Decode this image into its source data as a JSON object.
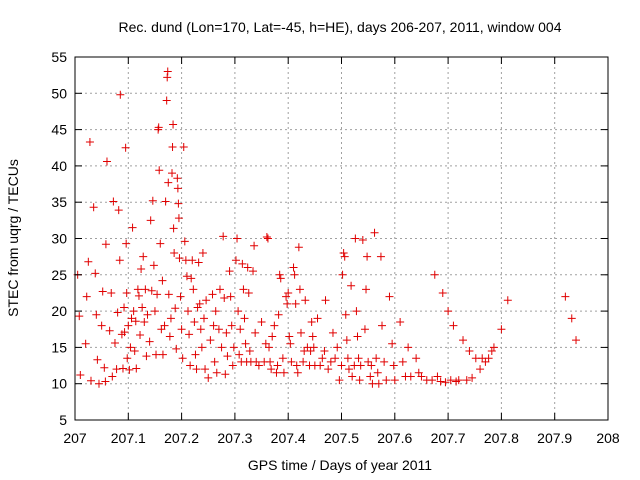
{
  "chart_data": {
    "type": "scatter",
    "title": "Rec. dund (Lon=170, Lat=-45, h=HE), days 206-207, 2011, window 004",
    "xlabel": "GPS time / Days of year 2011",
    "ylabel": "STEC from uqrg / TECUs",
    "xlim": [
      207,
      208
    ],
    "ylim": [
      5,
      55
    ],
    "x_ticks": [
      207,
      207.1,
      207.2,
      207.3,
      207.4,
      207.5,
      207.6,
      207.7,
      207.8,
      207.9,
      208
    ],
    "x_tick_labels": [
      "207",
      "207.1",
      "207.2",
      "207.3",
      "207.4",
      "207.5",
      "207.6",
      "207.7",
      "207.8",
      "207.9",
      "208"
    ],
    "y_ticks": [
      5,
      10,
      15,
      20,
      25,
      30,
      35,
      40,
      45,
      50,
      55
    ],
    "y_tick_labels": [
      "5",
      "10",
      "15",
      "20",
      "25",
      "30",
      "35",
      "40",
      "45",
      "50",
      "55"
    ],
    "grid": true,
    "marker": "+",
    "marker_color": "#e00000",
    "points": [
      [
        207.005,
        25.0
      ],
      [
        207.008,
        19.3
      ],
      [
        207.01,
        11.2
      ],
      [
        207.02,
        15.5
      ],
      [
        207.022,
        22.0
      ],
      [
        207.025,
        26.8
      ],
      [
        207.028,
        43.3
      ],
      [
        207.03,
        10.4
      ],
      [
        207.035,
        34.3
      ],
      [
        207.038,
        25.2
      ],
      [
        207.04,
        19.5
      ],
      [
        207.042,
        13.3
      ],
      [
        207.045,
        10.0
      ],
      [
        207.05,
        18.0
      ],
      [
        207.052,
        22.7
      ],
      [
        207.055,
        12.2
      ],
      [
        207.057,
        10.3
      ],
      [
        207.058,
        29.2
      ],
      [
        207.06,
        40.6
      ],
      [
        207.065,
        17.3
      ],
      [
        207.068,
        22.5
      ],
      [
        207.07,
        11.0
      ],
      [
        207.072,
        35.1
      ],
      [
        207.075,
        15.6
      ],
      [
        207.078,
        12.0
      ],
      [
        207.08,
        19.8
      ],
      [
        207.082,
        33.9
      ],
      [
        207.084,
        27.0
      ],
      [
        207.085,
        49.8
      ],
      [
        207.088,
        16.8
      ],
      [
        207.09,
        12.1
      ],
      [
        207.092,
        20.5
      ],
      [
        207.093,
        17.1
      ],
      [
        207.095,
        42.5
      ],
      [
        207.096,
        29.3
      ],
      [
        207.097,
        22.5
      ],
      [
        207.098,
        13.5
      ],
      [
        207.1,
        18.0
      ],
      [
        207.102,
        11.9
      ],
      [
        207.104,
        15.0
      ],
      [
        207.106,
        19.0
      ],
      [
        207.108,
        31.5
      ],
      [
        207.11,
        20.0
      ],
      [
        207.112,
        14.5
      ],
      [
        207.114,
        18.6
      ],
      [
        207.115,
        12.1
      ],
      [
        207.118,
        23.0
      ],
      [
        207.12,
        22.1
      ],
      [
        207.122,
        16.7
      ],
      [
        207.124,
        25.8
      ],
      [
        207.126,
        20.5
      ],
      [
        207.128,
        27.5
      ],
      [
        207.13,
        18.5
      ],
      [
        207.132,
        23.0
      ],
      [
        207.134,
        13.8
      ],
      [
        207.136,
        19.5
      ],
      [
        207.14,
        15.8
      ],
      [
        207.142,
        32.5
      ],
      [
        207.144,
        22.8
      ],
      [
        207.146,
        35.2
      ],
      [
        207.148,
        26.3
      ],
      [
        207.15,
        20.0
      ],
      [
        207.152,
        14.0
      ],
      [
        207.154,
        22.3
      ],
      [
        207.156,
        45.0
      ],
      [
        207.157,
        45.3
      ],
      [
        207.158,
        39.4
      ],
      [
        207.16,
        29.3
      ],
      [
        207.162,
        17.5
      ],
      [
        207.164,
        24.2
      ],
      [
        207.165,
        14.0
      ],
      [
        207.168,
        18.0
      ],
      [
        207.17,
        35.1
      ],
      [
        207.172,
        49.0
      ],
      [
        207.173,
        52.2
      ],
      [
        207.174,
        53.0
      ],
      [
        207.175,
        37.7
      ],
      [
        207.176,
        22.3
      ],
      [
        207.178,
        16.5
      ],
      [
        207.18,
        19.0
      ],
      [
        207.182,
        39.0
      ],
      [
        207.183,
        42.6
      ],
      [
        207.184,
        45.7
      ],
      [
        207.185,
        31.4
      ],
      [
        207.186,
        28.0
      ],
      [
        207.188,
        20.4
      ],
      [
        207.19,
        14.8
      ],
      [
        207.192,
        38.3
      ],
      [
        207.193,
        36.9
      ],
      [
        207.194,
        34.8
      ],
      [
        207.195,
        32.8
      ],
      [
        207.196,
        27.3
      ],
      [
        207.198,
        22.0
      ],
      [
        207.2,
        17.5
      ],
      [
        207.202,
        13.5
      ],
      [
        207.204,
        42.6
      ],
      [
        207.206,
        29.6
      ],
      [
        207.208,
        27.0
      ],
      [
        207.21,
        24.8
      ],
      [
        207.212,
        20.0
      ],
      [
        207.214,
        16.8
      ],
      [
        207.216,
        12.5
      ],
      [
        207.218,
        24.5
      ],
      [
        207.22,
        27.0
      ],
      [
        207.222,
        23.0
      ],
      [
        207.224,
        18.5
      ],
      [
        207.226,
        14.0
      ],
      [
        207.228,
        12.0
      ],
      [
        207.23,
        20.5
      ],
      [
        207.232,
        26.7
      ],
      [
        207.234,
        21.0
      ],
      [
        207.236,
        17.5
      ],
      [
        207.238,
        15.0
      ],
      [
        207.24,
        28.0
      ],
      [
        207.242,
        19.0
      ],
      [
        207.244,
        12.0
      ],
      [
        207.246,
        21.5
      ],
      [
        207.25,
        10.8
      ],
      [
        207.254,
        16.0
      ],
      [
        207.258,
        22.3
      ],
      [
        207.26,
        18.0
      ],
      [
        207.262,
        13.0
      ],
      [
        207.264,
        20.0
      ],
      [
        207.266,
        11.5
      ],
      [
        207.27,
        17.5
      ],
      [
        207.272,
        23.0
      ],
      [
        207.275,
        15.0
      ],
      [
        207.278,
        30.3
      ],
      [
        207.28,
        21.8
      ],
      [
        207.282,
        11.3
      ],
      [
        207.284,
        17.0
      ],
      [
        207.286,
        13.8
      ],
      [
        207.29,
        25.5
      ],
      [
        207.292,
        22.0
      ],
      [
        207.294,
        18.0
      ],
      [
        207.296,
        12.5
      ],
      [
        207.298,
        15.0
      ],
      [
        207.302,
        27.0
      ],
      [
        207.304,
        30.0
      ],
      [
        207.306,
        20.0
      ],
      [
        207.308,
        14.0
      ],
      [
        207.31,
        17.5
      ],
      [
        207.312,
        13.0
      ],
      [
        207.314,
        26.5
      ],
      [
        207.316,
        23.0
      ],
      [
        207.318,
        19.0
      ],
      [
        207.32,
        15.5
      ],
      [
        207.322,
        13.0
      ],
      [
        207.324,
        26.0
      ],
      [
        207.326,
        22.5
      ],
      [
        207.328,
        14.5
      ],
      [
        207.33,
        13.0
      ],
      [
        207.334,
        25.5
      ],
      [
        207.336,
        29.0
      ],
      [
        207.338,
        17.0
      ],
      [
        207.34,
        13.0
      ],
      [
        207.345,
        12.5
      ],
      [
        207.35,
        18.5
      ],
      [
        207.355,
        13.0
      ],
      [
        207.358,
        15.5
      ],
      [
        207.36,
        30.2
      ],
      [
        207.362,
        30.0
      ],
      [
        207.364,
        15.0
      ],
      [
        207.366,
        13.0
      ],
      [
        207.368,
        12.0
      ],
      [
        207.37,
        16.5
      ],
      [
        207.374,
        18.0
      ],
      [
        207.378,
        11.5
      ],
      [
        207.38,
        12.5
      ],
      [
        207.382,
        19.5
      ],
      [
        207.384,
        25.0
      ],
      [
        207.386,
        24.5
      ],
      [
        207.39,
        13.5
      ],
      [
        207.392,
        11.5
      ],
      [
        207.396,
        22.0
      ],
      [
        207.398,
        21.0
      ],
      [
        207.4,
        22.5
      ],
      [
        207.402,
        16.5
      ],
      [
        207.404,
        15.5
      ],
      [
        207.406,
        13.0
      ],
      [
        207.41,
        26.0
      ],
      [
        207.412,
        25.0
      ],
      [
        207.414,
        21.0
      ],
      [
        207.416,
        12.5
      ],
      [
        207.418,
        11.5
      ],
      [
        207.42,
        28.8
      ],
      [
        207.422,
        23.0
      ],
      [
        207.424,
        17.0
      ],
      [
        207.428,
        13.0
      ],
      [
        207.43,
        14.5
      ],
      [
        207.432,
        21.5
      ],
      [
        207.436,
        15.0
      ],
      [
        207.44,
        12.5
      ],
      [
        207.442,
        14.5
      ],
      [
        207.444,
        18.5
      ],
      [
        207.446,
        16.5
      ],
      [
        207.448,
        15.0
      ],
      [
        207.45,
        12.5
      ],
      [
        207.455,
        19.0
      ],
      [
        207.46,
        12.5
      ],
      [
        207.464,
        13.5
      ],
      [
        207.468,
        14.5
      ],
      [
        207.47,
        21.5
      ],
      [
        207.475,
        12.0
      ],
      [
        207.48,
        13.0
      ],
      [
        207.484,
        17.0
      ],
      [
        207.488,
        13.5
      ],
      [
        207.492,
        15.0
      ],
      [
        207.496,
        10.5
      ],
      [
        207.5,
        12.5
      ],
      [
        207.502,
        25.0
      ],
      [
        207.504,
        28.0
      ],
      [
        207.506,
        27.5
      ],
      [
        207.508,
        19.5
      ],
      [
        207.51,
        16.0
      ],
      [
        207.512,
        13.5
      ],
      [
        207.514,
        12.0
      ],
      [
        207.518,
        23.5
      ],
      [
        207.52,
        11.0
      ],
      [
        207.524,
        12.5
      ],
      [
        207.526,
        30.0
      ],
      [
        207.528,
        20.0
      ],
      [
        207.53,
        16.5
      ],
      [
        207.532,
        13.5
      ],
      [
        207.534,
        10.5
      ],
      [
        207.536,
        12.5
      ],
      [
        207.54,
        29.8
      ],
      [
        207.544,
        17.5
      ],
      [
        207.546,
        23.0
      ],
      [
        207.548,
        27.5
      ],
      [
        207.55,
        13.0
      ],
      [
        207.554,
        11.0
      ],
      [
        207.556,
        12.5
      ],
      [
        207.558,
        10.0
      ],
      [
        207.562,
        30.8
      ],
      [
        207.565,
        13.5
      ],
      [
        207.568,
        11.5
      ],
      [
        207.57,
        10.0
      ],
      [
        207.574,
        27.5
      ],
      [
        207.576,
        18.0
      ],
      [
        207.58,
        13.0
      ],
      [
        207.584,
        10.5
      ],
      [
        207.59,
        22.0
      ],
      [
        207.595,
        15.5
      ],
      [
        207.598,
        12.5
      ],
      [
        207.6,
        10.5
      ],
      [
        207.61,
        18.5
      ],
      [
        207.615,
        13.0
      ],
      [
        207.62,
        11.0
      ],
      [
        207.625,
        15.0
      ],
      [
        207.63,
        11.0
      ],
      [
        207.64,
        13.5
      ],
      [
        207.645,
        11.5
      ],
      [
        207.65,
        11.0
      ],
      [
        207.66,
        10.5
      ],
      [
        207.67,
        10.5
      ],
      [
        207.675,
        25.0
      ],
      [
        207.68,
        11.0
      ],
      [
        207.686,
        10.3
      ],
      [
        207.69,
        22.5
      ],
      [
        207.695,
        10.2
      ],
      [
        207.7,
        20.0
      ],
      [
        207.705,
        10.5
      ],
      [
        207.71,
        18.0
      ],
      [
        207.715,
        10.3
      ],
      [
        207.72,
        10.5
      ],
      [
        207.728,
        16.0
      ],
      [
        207.735,
        10.5
      ],
      [
        207.74,
        14.5
      ],
      [
        207.745,
        10.8
      ],
      [
        207.752,
        13.5
      ],
      [
        207.76,
        12.0
      ],
      [
        207.764,
        13.5
      ],
      [
        207.77,
        13.0
      ],
      [
        207.776,
        13.5
      ],
      [
        207.782,
        14.5
      ],
      [
        207.786,
        15.0
      ],
      [
        207.8,
        17.5
      ],
      [
        207.812,
        21.5
      ],
      [
        207.92,
        22.0
      ],
      [
        207.932,
        19.0
      ],
      [
        207.94,
        16.0
      ]
    ]
  }
}
